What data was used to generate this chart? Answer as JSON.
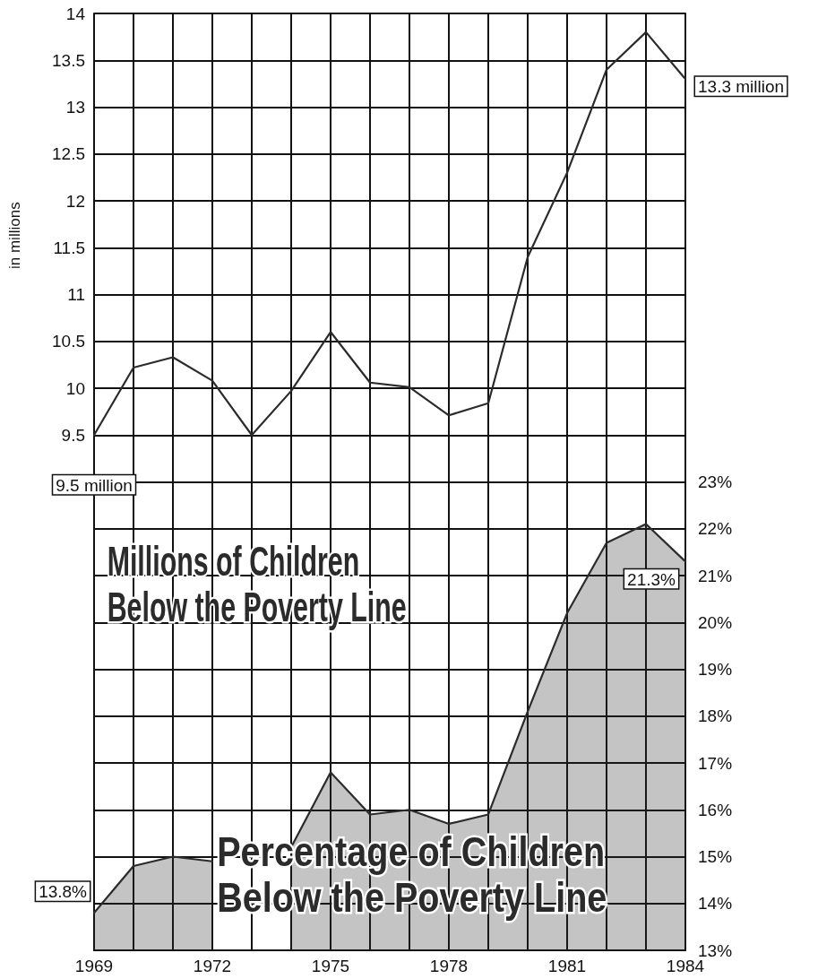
{
  "chart_data": {
    "type": "line",
    "ylabel": "in millions",
    "categories": [
      "1969",
      null,
      null,
      "1972",
      null,
      null,
      "1975",
      null,
      null,
      "1978",
      null,
      null,
      "1981",
      null,
      null,
      "1984"
    ],
    "series": [
      {
        "name": "Millions of Children Below the Poverty Line",
        "color": "#2b2b2b",
        "values": [
          9.5,
          10.22,
          10.33,
          10.08,
          9.5,
          9.97,
          10.6,
          10.06,
          10.01,
          9.71,
          9.84,
          11.4,
          12.3,
          13.4,
          13.8,
          13.3
        ],
        "value_labels": [
          "9.5 million",
          null,
          null,
          null,
          null,
          null,
          null,
          null,
          null,
          null,
          null,
          null,
          null,
          null,
          null,
          "13.3 million"
        ]
      },
      {
        "name": "Percentage of Children Below the Poverty Line",
        "type": "area",
        "axis": "y2",
        "color": "#2b2b2b",
        "values": [
          13.8,
          14.8,
          15.0,
          14.9,
          null,
          15.2,
          16.8,
          15.9,
          16.0,
          15.7,
          15.9,
          18.1,
          20.2,
          21.7,
          22.1,
          21.3
        ],
        "value_labels": [
          "13.8%",
          null,
          null,
          null,
          null,
          null,
          null,
          null,
          null,
          null,
          null,
          null,
          null,
          null,
          null,
          "21.3%"
        ]
      }
    ],
    "ylim": [
      4,
      14
    ],
    "yticks": [
      9.5,
      10,
      10.5,
      11,
      11.5,
      12,
      12.5,
      13,
      13.5,
      14
    ],
    "y2lim": [
      13,
      33
    ],
    "y2ticks": [
      {
        "value": 13,
        "label": "13%"
      },
      {
        "value": 14,
        "label": "14%"
      },
      {
        "value": 15,
        "label": "15%"
      },
      {
        "value": 16,
        "label": "16%"
      },
      {
        "value": 17,
        "label": "17%"
      },
      {
        "value": 18,
        "label": "18%"
      },
      {
        "value": 19,
        "label": "19%"
      },
      {
        "value": 20,
        "label": "20%"
      },
      {
        "value": 21,
        "label": "21%"
      },
      {
        "value": 22,
        "label": "22%"
      },
      {
        "value": 23,
        "label": "23%"
      }
    ],
    "grid": true,
    "marker": "none"
  }
}
